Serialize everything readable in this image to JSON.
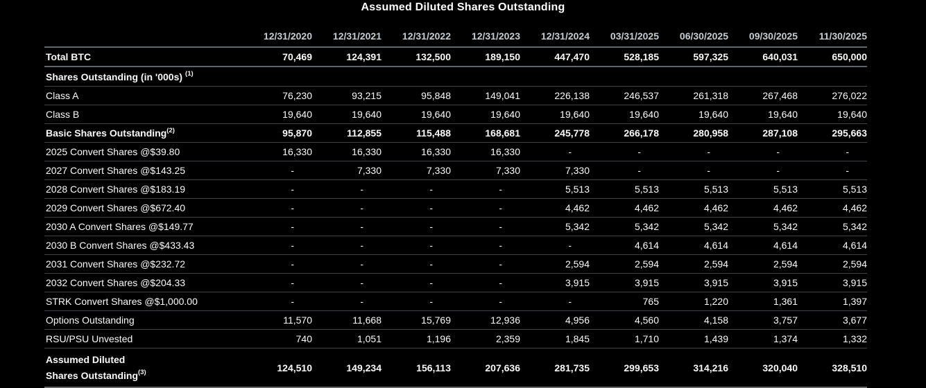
{
  "colors": {
    "background": "#000000",
    "text": "#fafafa",
    "header_text": "#c6ccd2",
    "rule_thick": "#5d676c",
    "rule_thin": "#3d4347"
  },
  "chart_data": {
    "type": "table",
    "title": "Assumed Diluted Shares Outstanding",
    "columns": [
      "12/31/2020",
      "12/31/2021",
      "12/31/2022",
      "12/31/2023",
      "12/31/2024",
      "03/31/2025",
      "06/30/2025",
      "09/30/2025",
      "11/30/2025"
    ],
    "rows": [
      {
        "label": "Total BTC",
        "bold": true,
        "bottom": "thick",
        "values": [
          "70,469",
          "124,391",
          "132,500",
          "189,150",
          "447,470",
          "528,185",
          "597,325",
          "640,031",
          "650,000"
        ]
      },
      {
        "label": "Shares Outstanding (in '000s)",
        "sup": "(1)",
        "sup_space": true,
        "bold": true,
        "section": true,
        "values": [
          "",
          "",
          "",
          "",
          "",
          "",
          "",
          "",
          ""
        ]
      },
      {
        "label": "Class A",
        "values": [
          "76,230",
          "93,215",
          "95,848",
          "149,041",
          "226,138",
          "246,537",
          "261,318",
          "267,468",
          "276,022"
        ]
      },
      {
        "label": "Class B",
        "values": [
          "19,640",
          "19,640",
          "19,640",
          "19,640",
          "19,640",
          "19,640",
          "19,640",
          "19,640",
          "19,640"
        ]
      },
      {
        "label": "Basic Shares Outstanding",
        "sup": "(2)",
        "bold": true,
        "values": [
          "95,870",
          "112,855",
          "115,488",
          "168,681",
          "245,778",
          "266,178",
          "280,958",
          "287,108",
          "295,663"
        ]
      },
      {
        "label": "2025 Convert Shares @$39.80",
        "values": [
          "16,330",
          "16,330",
          "16,330",
          "16,330",
          "-",
          "-",
          "-",
          "-",
          "-"
        ]
      },
      {
        "label": "2027 Convert Shares @$143.25",
        "values": [
          "-",
          "7,330",
          "7,330",
          "7,330",
          "7,330",
          "-",
          "-",
          "-",
          "-"
        ]
      },
      {
        "label": "2028 Convert Shares @$183.19",
        "values": [
          "-",
          "-",
          "-",
          "-",
          "5,513",
          "5,513",
          "5,513",
          "5,513",
          "5,513"
        ]
      },
      {
        "label": "2029 Convert Shares @$672.40",
        "values": [
          "-",
          "-",
          "-",
          "-",
          "4,462",
          "4,462",
          "4,462",
          "4,462",
          "4,462"
        ]
      },
      {
        "label": "2030 A Convert Shares @$149.77",
        "values": [
          "-",
          "-",
          "-",
          "-",
          "5,342",
          "5,342",
          "5,342",
          "5,342",
          "5,342"
        ]
      },
      {
        "label": "2030 B Convert Shares @$433.43",
        "values": [
          "-",
          "-",
          "-",
          "-",
          "-",
          "4,614",
          "4,614",
          "4,614",
          "4,614"
        ]
      },
      {
        "label": "2031 Convert Shares @$232.72",
        "values": [
          "-",
          "-",
          "-",
          "-",
          "2,594",
          "2,594",
          "2,594",
          "2,594",
          "2,594"
        ]
      },
      {
        "label": "2032 Convert Shares @$204.33",
        "values": [
          "-",
          "-",
          "-",
          "-",
          "3,915",
          "3,915",
          "3,915",
          "3,915",
          "3,915"
        ]
      },
      {
        "label": "STRK Convert Shares @$1,000.00",
        "values": [
          "-",
          "-",
          "-",
          "-",
          "-",
          "765",
          "1,220",
          "1,361",
          "1,397"
        ]
      },
      {
        "label": "Options Outstanding",
        "values": [
          "11,570",
          "11,668",
          "15,769",
          "12,936",
          "4,956",
          "4,560",
          "4,158",
          "3,757",
          "3,677"
        ]
      },
      {
        "label": "RSU/PSU Unvested",
        "values": [
          "740",
          "1,051",
          "1,196",
          "2,359",
          "1,845",
          "1,710",
          "1,439",
          "1,374",
          "1,332"
        ]
      },
      {
        "label_lines": [
          "Assumed Diluted",
          "Shares Outstanding"
        ],
        "label": "Assumed Diluted Shares Outstanding",
        "sup": "(3)",
        "bold": true,
        "wrap": true,
        "bottom": "thick",
        "values": [
          "124,510",
          "149,234",
          "156,113",
          "207,636",
          "281,735",
          "299,653",
          "314,216",
          "320,040",
          "328,510"
        ]
      }
    ]
  }
}
